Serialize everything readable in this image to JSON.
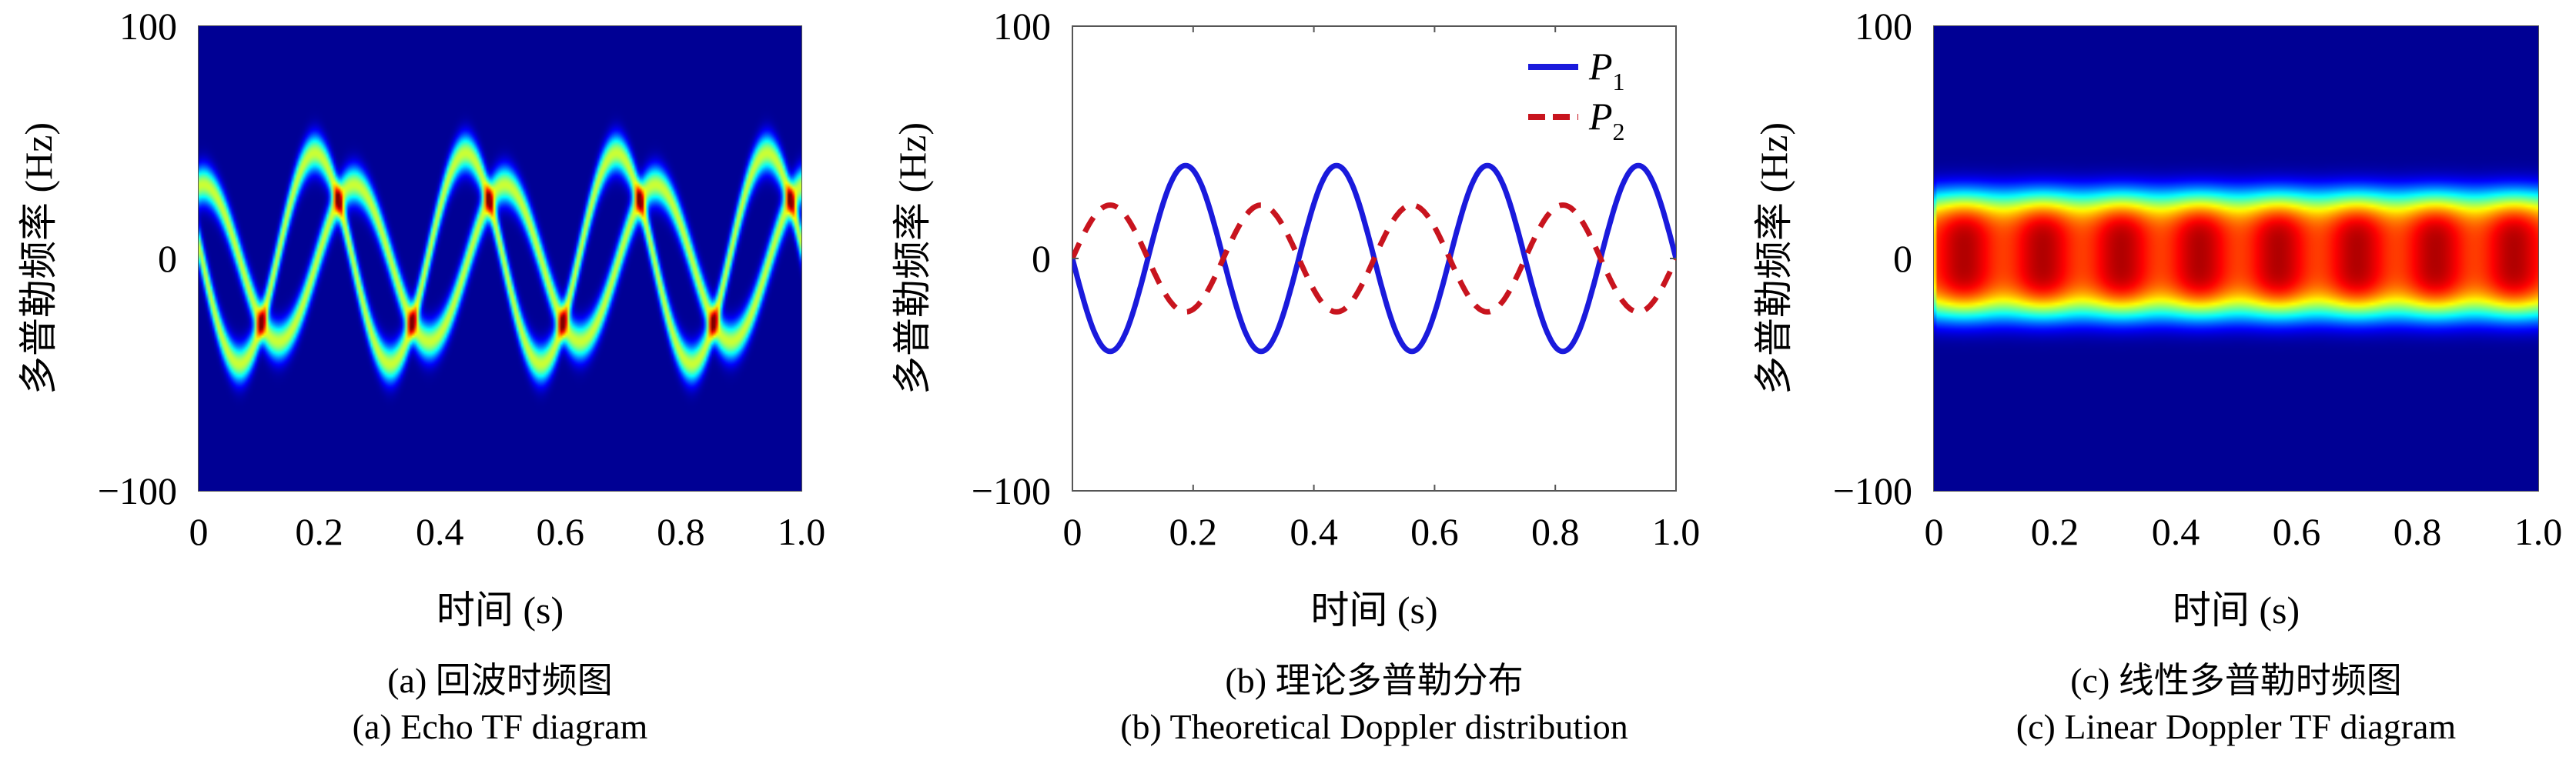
{
  "chart_data": [
    {
      "type": "heatmap",
      "title": "",
      "xlabel": "时间 (s)",
      "ylabel": "多普勒频率 (Hz)",
      "xlim": [
        0,
        1.0
      ],
      "ylim": [
        -100,
        100
      ],
      "xticks": [
        "0",
        "0.2",
        "0.4",
        "0.6",
        "0.8",
        "1.0"
      ],
      "yticks": [
        "100",
        "0",
        "-100"
      ],
      "caption_cn": "(a) 回波时频图",
      "caption_en": "(a) Echo TF diagram",
      "colormap": "jet",
      "description_values": {
        "ridge_amplitude_hz": 45,
        "ridge_frequency_hz": 4
      }
    },
    {
      "type": "line",
      "title": "",
      "xlabel": "时间 (s)",
      "ylabel": "多普勒频率 (Hz)",
      "xlim": [
        0,
        1.0
      ],
      "ylim": [
        -100,
        100
      ],
      "xticks": [
        "0",
        "0.2",
        "0.4",
        "0.6",
        "0.8",
        "1.0"
      ],
      "yticks": [
        "100",
        "0",
        "-100"
      ],
      "legend_position": "top-right",
      "series": [
        {
          "name": "P",
          "sub": "1",
          "color": "#1a1adc",
          "style": "solid",
          "amplitude": -40,
          "frequency": 4
        },
        {
          "name": "P",
          "sub": "2",
          "color": "#c8141e",
          "style": "dashed",
          "amplitude": 23,
          "frequency": 4
        }
      ],
      "caption_cn": "(b) 理论多普勒分布",
      "caption_en": "(b) Theoretical Doppler distribution"
    },
    {
      "type": "heatmap",
      "title": "",
      "xlabel": "时间 (s)",
      "ylabel": "多普勒频率 (Hz)",
      "xlim": [
        0,
        1.0
      ],
      "ylim": [
        -100,
        100
      ],
      "xticks": [
        "0",
        "0.2",
        "0.4",
        "0.6",
        "0.8",
        "1.0"
      ],
      "yticks": [
        "100",
        "0",
        "-100"
      ],
      "caption_cn": "(c) 线性多普勒时频图",
      "caption_en": "(c) Linear Doppler TF diagram",
      "colormap": "jet",
      "description_values": {
        "band_low_hz": -27,
        "band_high_hz": 30
      }
    }
  ]
}
